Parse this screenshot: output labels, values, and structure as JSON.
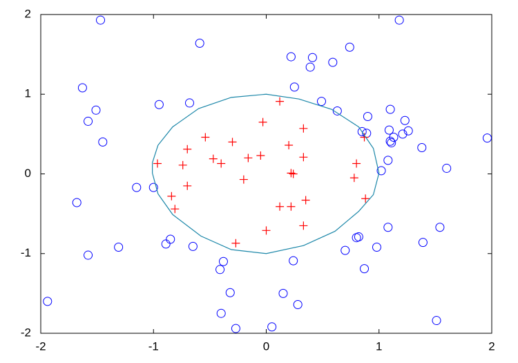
{
  "chart_data": {
    "type": "scatter",
    "xlim": [
      -2,
      2
    ],
    "ylim": [
      -2,
      2
    ],
    "xticks": [
      -2,
      -1,
      0,
      1,
      2
    ],
    "yticks": [
      -2,
      -1,
      0,
      1,
      2
    ],
    "grid": false,
    "series": [
      {
        "marker": "o",
        "color": "#0000ff",
        "x": [
          -1.47,
          1.18,
          -0.59,
          0.22,
          0.41,
          0.74,
          0.59,
          0.39,
          -1.63,
          -1.51,
          -1.58,
          -1.45,
          -0.95,
          -0.68,
          0.25,
          0.49,
          0.63,
          0.9,
          1.1,
          0.85,
          0.89,
          1.09,
          1.23,
          1.13,
          1.11,
          1.1,
          1.21,
          1.26,
          1.38,
          1.96,
          1.08,
          1.02,
          1.6,
          -1.15,
          -1.0,
          -1.68,
          1.08,
          1.54,
          -1.31,
          -1.58,
          -0.85,
          -0.89,
          -0.65,
          0.82,
          0.8,
          0.98,
          0.7,
          1.39,
          -0.38,
          -0.41,
          0.24,
          0.87,
          -0.32,
          0.15,
          -0.4,
          0.28,
          -1.94,
          -0.27,
          0.05,
          1.51
        ],
        "y": [
          1.93,
          1.93,
          1.64,
          1.47,
          1.46,
          1.59,
          1.4,
          1.34,
          1.08,
          0.8,
          0.66,
          0.4,
          0.87,
          0.89,
          1.09,
          0.91,
          0.79,
          0.72,
          0.81,
          0.53,
          0.51,
          0.55,
          0.67,
          0.46,
          0.39,
          0.41,
          0.5,
          0.54,
          0.33,
          0.45,
          0.17,
          0.04,
          0.07,
          -0.17,
          -0.17,
          -0.36,
          -0.67,
          -0.67,
          -0.92,
          -1.02,
          -0.82,
          -0.88,
          -0.91,
          -0.79,
          -0.8,
          -0.92,
          -0.96,
          -0.86,
          -1.1,
          -1.2,
          -1.09,
          -1.19,
          -1.49,
          -1.5,
          -1.75,
          -1.64,
          -1.6,
          -1.94,
          -1.92,
          -1.84
        ]
      },
      {
        "marker": "+",
        "color": "#ff0000",
        "x": [
          -0.965,
          -0.7,
          -0.54,
          -0.47,
          -0.4,
          -0.3,
          -0.16,
          -0.05,
          -0.03,
          0.12,
          0.2,
          0.33,
          0.22,
          0.24,
          0.33,
          0.8,
          0.78,
          0.87,
          0.88,
          -0.7,
          -0.74,
          -0.84,
          -0.81,
          -0.2,
          0.12,
          0.22,
          0.35,
          0.33,
          0.0,
          -0.27
        ],
        "y": [
          0.13,
          0.31,
          0.46,
          0.19,
          0.13,
          0.4,
          0.2,
          0.23,
          0.65,
          0.91,
          0.36,
          0.57,
          0.01,
          0.0,
          0.21,
          0.13,
          -0.05,
          0.46,
          -0.31,
          -0.15,
          0.11,
          -0.28,
          -0.44,
          -0.07,
          -0.41,
          -0.41,
          -0.33,
          -0.65,
          -0.71,
          -0.87
        ]
      },
      {
        "marker": "line",
        "color": "#1a86a8",
        "x": [
          -1.01,
          -0.96,
          -0.83,
          -0.6,
          -0.31,
          0.0,
          0.29,
          0.58,
          0.82,
          0.95,
          1.0,
          0.95,
          0.82,
          0.61,
          0.33,
          0.0,
          -0.31,
          -0.58,
          -0.83,
          -0.96,
          -1.01,
          -1.01
        ],
        "y": [
          0.14,
          0.36,
          0.59,
          0.82,
          0.96,
          1.0,
          0.94,
          0.81,
          0.59,
          0.32,
          0.01,
          -0.26,
          -0.47,
          -0.72,
          -0.9,
          -1.0,
          -0.95,
          -0.78,
          -0.51,
          -0.25,
          0.01,
          0.14
        ]
      }
    ]
  }
}
